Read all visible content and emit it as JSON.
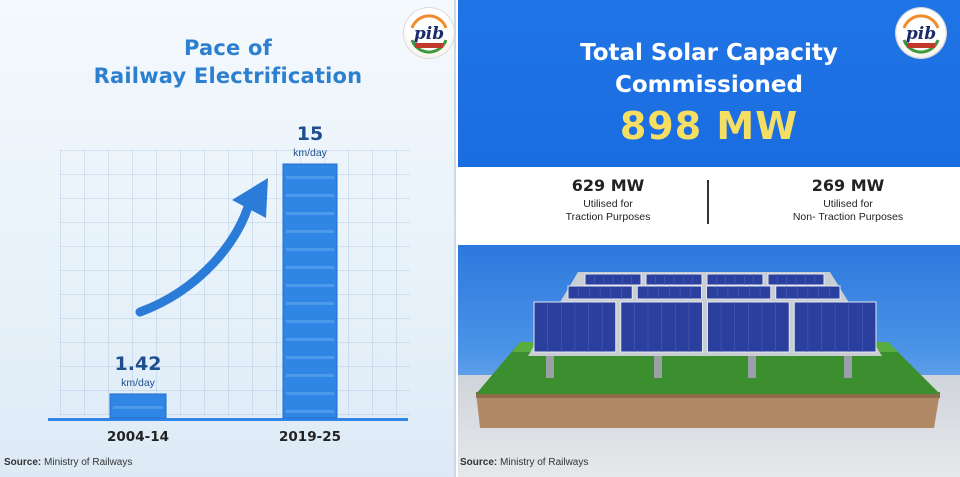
{
  "left": {
    "title_line1": "Pace of",
    "title_line2": "Railway Electrification",
    "source_label": "Source:",
    "source_text": " Ministry of Railways"
  },
  "chart_data": {
    "type": "bar",
    "title": "Pace of Railway Electrification",
    "categories": [
      "2004-14",
      "2019-25"
    ],
    "values": [
      1.42,
      15
    ],
    "value_labels": [
      "1.42",
      "15"
    ],
    "unit": "km/day",
    "colors": {
      "bar": "#2f86e4",
      "bar_dark": "#1f6fd1",
      "arrow": "#2b7bd8",
      "baseline": "#2f86e4"
    }
  },
  "right": {
    "title_line1": "Total Solar Capacity",
    "title_line2": "Commissioned",
    "total": "898 MW",
    "stats": [
      {
        "value": "629 MW",
        "desc_line1": "Utilised for",
        "desc_line2": "Traction Purposes"
      },
      {
        "value": "269 MW",
        "desc_line1": "Utilised for",
        "desc_line2": "Non- Traction Purposes"
      }
    ],
    "source_label": "Source:",
    "source_text": " Ministry of Railways",
    "colors": {
      "banner": "#1f74e6",
      "total": "#f6de63"
    }
  },
  "logo": {
    "text": "pib",
    "icon": "pib-logo-icon"
  }
}
